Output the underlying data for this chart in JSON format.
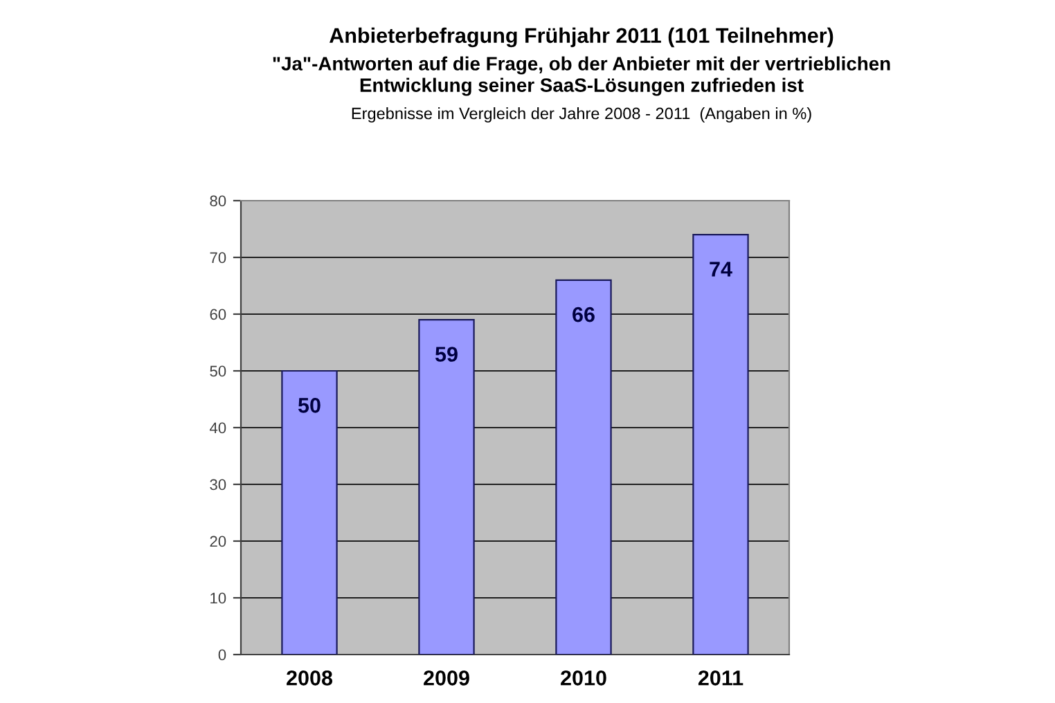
{
  "chart_data": {
    "type": "bar",
    "title": "Anbieterbefragung Frühjahr 2011 (101 Teilnehmer)",
    "subtitle": "\"Ja\"-Antworten auf die Frage, ob der Anbieter mit der vertrieblichen\nEntwicklung seiner SaaS-Lösungen zufrieden ist",
    "annotations": [
      "Ergebnisse im Vergleich der Jahre 2008 - 2011  (Angaben in %)"
    ],
    "categories": [
      "2008",
      "2009",
      "2010",
      "2011"
    ],
    "values": [
      50,
      59,
      66,
      74
    ],
    "color": "#9999ff",
    "ylim": [
      0,
      80
    ],
    "yticks": [
      0,
      10,
      20,
      30,
      40,
      50,
      60,
      70,
      80
    ],
    "grid": "y",
    "data_labels": true,
    "legend": false
  }
}
